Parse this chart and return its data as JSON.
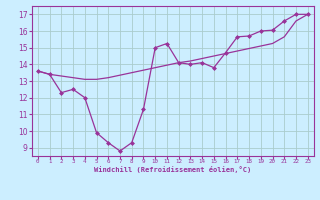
{
  "xlabel": "Windchill (Refroidissement éolien,°C)",
  "background_color": "#cceeff",
  "grid_color": "#aacccc",
  "line_color": "#993399",
  "x_line1": [
    0,
    1,
    2,
    3,
    4,
    5,
    6,
    7,
    8,
    9,
    10,
    11,
    12,
    13,
    14,
    15,
    16,
    17,
    18,
    19,
    20,
    21,
    22,
    23
  ],
  "y_line1": [
    13.6,
    13.4,
    12.3,
    12.5,
    12.0,
    9.9,
    9.3,
    8.8,
    9.3,
    11.3,
    15.0,
    15.25,
    14.1,
    14.0,
    14.1,
    13.8,
    14.7,
    15.65,
    15.7,
    16.0,
    16.05,
    16.6,
    17.0,
    17.0
  ],
  "x_line2": [
    0,
    1,
    2,
    3,
    4,
    5,
    6,
    7,
    8,
    9,
    10,
    11,
    12,
    13,
    14,
    15,
    16,
    17,
    18,
    19,
    20,
    21,
    22,
    23
  ],
  "y_line2": [
    13.6,
    13.4,
    13.3,
    13.2,
    13.1,
    13.1,
    13.2,
    13.35,
    13.5,
    13.65,
    13.8,
    13.95,
    14.1,
    14.2,
    14.35,
    14.5,
    14.65,
    14.8,
    14.95,
    15.1,
    15.25,
    15.65,
    16.6,
    17.0
  ],
  "ylim": [
    8.5,
    17.5
  ],
  "yticks": [
    9,
    10,
    11,
    12,
    13,
    14,
    15,
    16,
    17
  ],
  "xlim": [
    -0.5,
    23.5
  ],
  "xticks": [
    0,
    1,
    2,
    3,
    4,
    5,
    6,
    7,
    8,
    9,
    10,
    11,
    12,
    13,
    14,
    15,
    16,
    17,
    18,
    19,
    20,
    21,
    22,
    23
  ],
  "xtick_labels": [
    "0",
    "1",
    "2",
    "3",
    "4",
    "5",
    "6",
    "7",
    "8",
    "9",
    "10",
    "11",
    "12",
    "13",
    "14",
    "15",
    "16",
    "17",
    "18",
    "19",
    "20",
    "21",
    "22",
    "23"
  ]
}
